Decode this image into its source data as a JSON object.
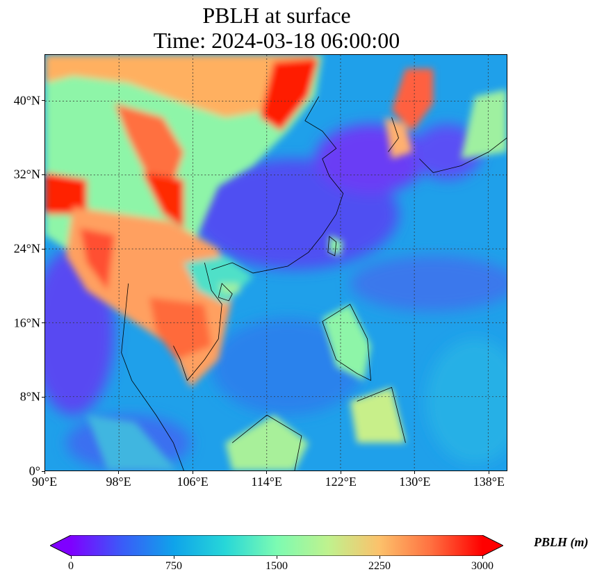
{
  "title": {
    "line1": "PBLH at surface",
    "line2": "Time: 2024-03-18 06:00:00"
  },
  "axes": {
    "lon_range": [
      90,
      140
    ],
    "lat_range": [
      0,
      45
    ],
    "x_ticks": [
      {
        "value": 90,
        "label": "90°E"
      },
      {
        "value": 98,
        "label": "98°E"
      },
      {
        "value": 106,
        "label": "106°E"
      },
      {
        "value": 114,
        "label": "114°E"
      },
      {
        "value": 122,
        "label": "122°E"
      },
      {
        "value": 130,
        "label": "130°E"
      },
      {
        "value": 138,
        "label": "138°E"
      }
    ],
    "y_ticks": [
      {
        "value": 0,
        "label": "0°"
      },
      {
        "value": 8,
        "label": "8°N"
      },
      {
        "value": 16,
        "label": "16°N"
      },
      {
        "value": 24,
        "label": "24°N"
      },
      {
        "value": 32,
        "label": "32°N"
      },
      {
        "value": 40,
        "label": "40°N"
      }
    ],
    "gridlines": true
  },
  "colorbar": {
    "label": "PBLH (m)",
    "range": [
      0,
      3000
    ],
    "ticks": [
      {
        "value": 0,
        "label": "0"
      },
      {
        "value": 750,
        "label": "750"
      },
      {
        "value": 1500,
        "label": "1500"
      },
      {
        "value": 2250,
        "label": "2250"
      },
      {
        "value": 3000,
        "label": "3000"
      }
    ],
    "colormap": "rainbow",
    "extend": "both",
    "colors": [
      "#7f00ff",
      "#3a5cf8",
      "#0fa3ea",
      "#27d7d8",
      "#7cfbb2",
      "#bff28e",
      "#fcc16b",
      "#ff7040",
      "#ff0000"
    ]
  },
  "map_regions": {
    "ocean_color": "#2f8fe8",
    "warm_land_color": "#ff7a45",
    "hot_land_color": "#ff1a00",
    "mid_land_color": "#8ef5a8",
    "low_ocean_color": "#4a55f0"
  }
}
